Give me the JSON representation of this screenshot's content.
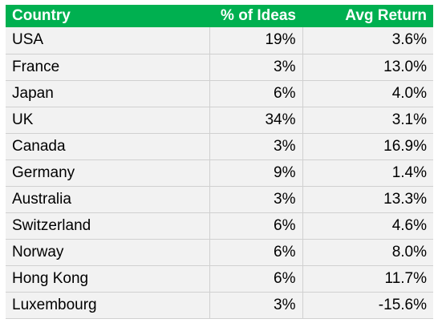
{
  "table": {
    "headers": {
      "country": "Country",
      "ideas": "% of Ideas",
      "return": "Avg Return"
    },
    "rows": [
      {
        "country": "USA",
        "ideas": "19%",
        "return": "3.6%"
      },
      {
        "country": "France",
        "ideas": "3%",
        "return": "13.0%"
      },
      {
        "country": "Japan",
        "ideas": "6%",
        "return": "4.0%"
      },
      {
        "country": "UK",
        "ideas": "34%",
        "return": "3.1%"
      },
      {
        "country": "Canada",
        "ideas": "3%",
        "return": "16.9%"
      },
      {
        "country": "Germany",
        "ideas": "9%",
        "return": "1.4%"
      },
      {
        "country": "Australia",
        "ideas": "3%",
        "return": "13.3%"
      },
      {
        "country": "Switzerland",
        "ideas": "6%",
        "return": "4.6%"
      },
      {
        "country": "Norway",
        "ideas": "6%",
        "return": "8.0%"
      },
      {
        "country": "Hong Kong",
        "ideas": "6%",
        "return": "11.7%"
      },
      {
        "country": "Luxembourg",
        "ideas": "3%",
        "return": "-15.6%"
      }
    ]
  },
  "colors": {
    "header_bg": "#00b050",
    "header_text": "#ffffff",
    "row_bg": "#f2f2f2"
  }
}
